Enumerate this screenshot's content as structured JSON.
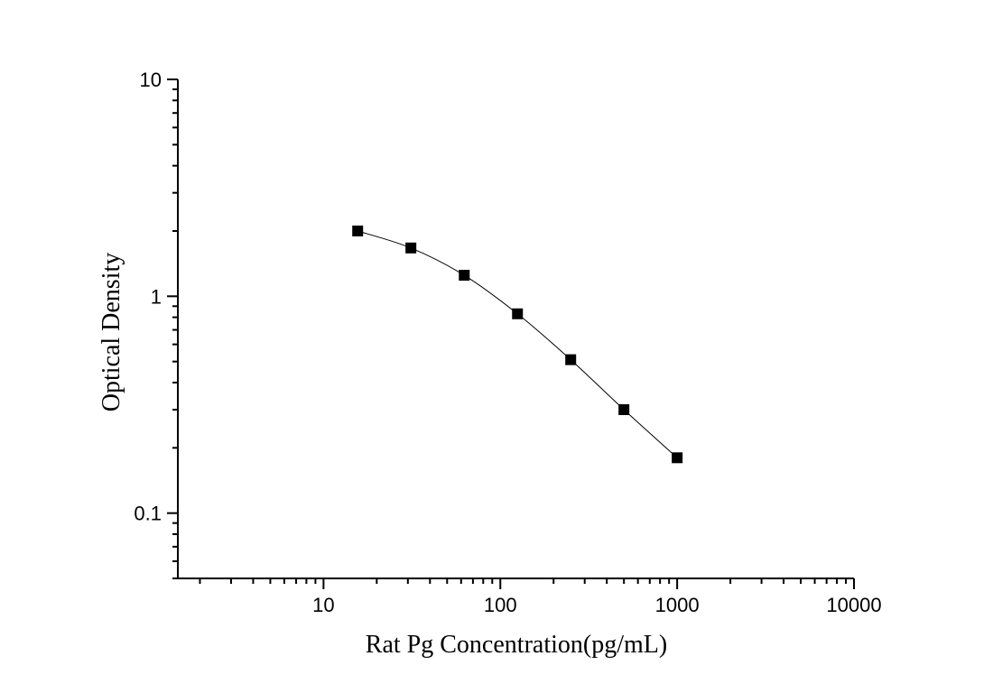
{
  "chart_data": {
    "type": "line",
    "xlabel": "Rat Pg Concentration(pg/mL)",
    "ylabel": "Optical Density",
    "x_scale": "log",
    "y_scale": "log",
    "xlim": [
      1.5,
      10000
    ],
    "ylim": [
      0.05,
      10
    ],
    "x_ticks": [
      {
        "value": 10,
        "label": "10"
      },
      {
        "value": 100,
        "label": "100"
      },
      {
        "value": 1000,
        "label": "1000"
      },
      {
        "value": 10000,
        "label": "10000"
      }
    ],
    "y_ticks": [
      {
        "value": 0.1,
        "label": "0.1"
      },
      {
        "value": 1,
        "label": "1"
      },
      {
        "value": 10,
        "label": "10"
      }
    ],
    "grid": false,
    "marker": "square",
    "series": [
      {
        "x": [
          15.6,
          31.2,
          62.5,
          125,
          250,
          500,
          1000
        ],
        "y": [
          2.0,
          1.67,
          1.25,
          0.83,
          0.51,
          0.3,
          0.18
        ]
      }
    ]
  }
}
